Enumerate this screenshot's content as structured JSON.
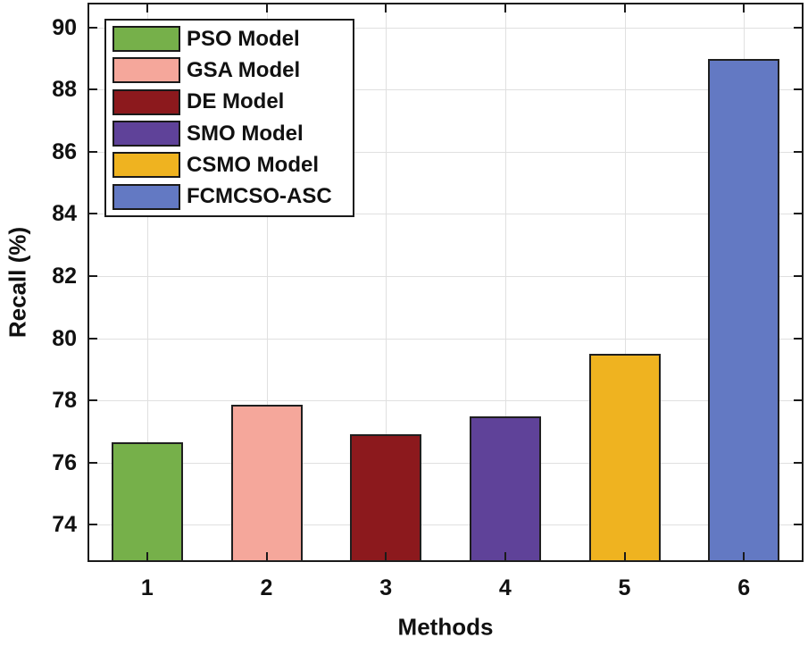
{
  "chart_data": {
    "type": "bar",
    "title": "",
    "xlabel": "Methods",
    "ylabel": "Recall (%)",
    "categories": [
      "1",
      "2",
      "3",
      "4",
      "5",
      "6"
    ],
    "series": [
      {
        "name": "PSO Model",
        "value": 76.65,
        "color": "#76B04A"
      },
      {
        "name": "GSA Model",
        "value": 77.85,
        "color": "#F5A79B"
      },
      {
        "name": "DE Model",
        "value": 76.9,
        "color": "#8C191D"
      },
      {
        "name": "SMO Model",
        "value": 77.5,
        "color": "#5F4299"
      },
      {
        "name": "CSMO Model",
        "value": 79.5,
        "color": "#EFB320"
      },
      {
        "name": "FCMCSO-ASC",
        "value": 89.0,
        "color": "#6379C3"
      }
    ],
    "ylim": [
      72.8,
      90.8
    ],
    "yticks": [
      74,
      76,
      78,
      80,
      82,
      84,
      86,
      88,
      90
    ],
    "grid": true,
    "legend_position": "top-left",
    "colors": {
      "axis": "#1a1a1a",
      "grid": "#e0e0e0",
      "text": "#111111",
      "bar_edge": "#1f1f1f",
      "background": "#ffffff"
    }
  }
}
